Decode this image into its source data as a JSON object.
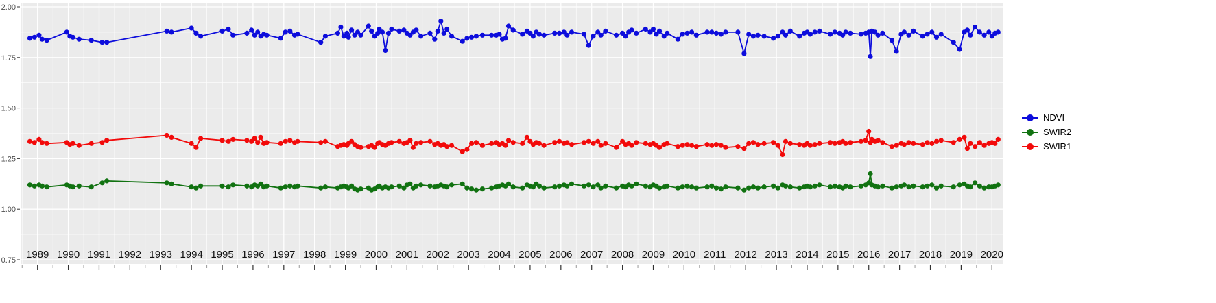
{
  "chart_data": {
    "type": "line",
    "title": "",
    "xlabel": "",
    "ylabel": "",
    "xlim": [
      1988.45,
      2020.35
    ],
    "ylim": [
      0.75,
      2.0
    ],
    "x_ticks": [
      1989,
      1990,
      1991,
      1992,
      1993,
      1994,
      1995,
      1996,
      1997,
      1998,
      1999,
      2000,
      2001,
      2002,
      2003,
      2004,
      2005,
      2006,
      2007,
      2008,
      2009,
      2010,
      2011,
      2012,
      2013,
      2014,
      2015,
      2016,
      2017,
      2018,
      2019,
      2020
    ],
    "y_ticks": [
      0.75,
      1.0,
      1.25,
      1.5,
      1.75,
      2.0
    ],
    "y_tick_labels": [
      "0.75",
      "1.00",
      "1.25",
      "1.50",
      "1.75",
      "2.00"
    ],
    "grid": true,
    "legend_position": "right",
    "colors": {
      "panel_bg": "#EBEBEB",
      "grid": "#FFFFFF",
      "axis_text": "#4D4D4D",
      "x_axis_text": "#111111",
      "ndvi": "#0D0DDC",
      "swir2": "#117211",
      "swir1": "#F20A0A"
    },
    "x": [
      1988.75,
      1988.9,
      1989.05,
      1989.15,
      1989.3,
      1989.95,
      1990.05,
      1990.15,
      1990.35,
      1990.75,
      1991.1,
      1991.25,
      1993.2,
      1993.35,
      1994.0,
      1994.15,
      1994.3,
      1995.0,
      1995.2,
      1995.35,
      1995.8,
      1995.95,
      1996.05,
      1996.15,
      1996.25,
      1996.35,
      1996.45,
      1996.9,
      1997.05,
      1997.2,
      1997.35,
      1997.45,
      1998.2,
      1998.35,
      1998.75,
      1998.85,
      1998.95,
      1999.05,
      1999.1,
      1999.2,
      1999.3,
      1999.4,
      1999.5,
      1999.75,
      1999.85,
      1999.95,
      2000.05,
      2000.1,
      2000.2,
      2000.3,
      2000.4,
      2000.5,
      2000.75,
      2000.9,
      2001.0,
      2001.1,
      2001.2,
      2001.3,
      2001.45,
      2001.75,
      2001.9,
      2002.0,
      2002.1,
      2002.2,
      2002.3,
      2002.45,
      2002.8,
      2002.95,
      2003.1,
      2003.25,
      2003.45,
      2003.75,
      2003.9,
      2004.0,
      2004.1,
      2004.2,
      2004.3,
      2004.45,
      2004.75,
      2004.9,
      2005.0,
      2005.1,
      2005.2,
      2005.3,
      2005.45,
      2005.8,
      2005.95,
      2006.1,
      2006.2,
      2006.35,
      2006.75,
      2006.9,
      2007.05,
      2007.2,
      2007.3,
      2007.45,
      2007.8,
      2008.0,
      2008.1,
      2008.2,
      2008.3,
      2008.45,
      2008.75,
      2008.9,
      2009.0,
      2009.1,
      2009.2,
      2009.35,
      2009.45,
      2009.8,
      2009.95,
      2010.1,
      2010.25,
      2010.4,
      2010.75,
      2010.9,
      2011.05,
      2011.2,
      2011.35,
      2011.75,
      2011.95,
      2012.1,
      2012.25,
      2012.4,
      2012.6,
      2012.9,
      2013.05,
      2013.2,
      2013.3,
      2013.45,
      2013.75,
      2013.9,
      2014.0,
      2014.1,
      2014.25,
      2014.4,
      2014.75,
      2014.9,
      2015.05,
      2015.15,
      2015.25,
      2015.4,
      2015.75,
      2015.9,
      2016.0,
      2016.05,
      2016.1,
      2016.2,
      2016.3,
      2016.45,
      2016.75,
      2016.9,
      2017.05,
      2017.15,
      2017.3,
      2017.45,
      2017.75,
      2017.9,
      2018.05,
      2018.2,
      2018.35,
      2018.75,
      2018.95,
      2019.1,
      2019.2,
      2019.3,
      2019.45,
      2019.6,
      2019.75,
      2019.9,
      2020.0,
      2020.1,
      2020.2
    ],
    "series": [
      {
        "name": "NDVI",
        "color": "#0D0DDC",
        "values": [
          1.845,
          1.85,
          1.86,
          1.84,
          1.835,
          1.875,
          1.855,
          1.85,
          1.84,
          1.835,
          1.825,
          1.825,
          1.88,
          1.875,
          1.895,
          1.87,
          1.855,
          1.88,
          1.89,
          1.86,
          1.87,
          1.885,
          1.86,
          1.875,
          1.855,
          1.865,
          1.86,
          1.845,
          1.875,
          1.88,
          1.86,
          1.865,
          1.825,
          1.855,
          1.87,
          1.9,
          1.855,
          1.87,
          1.85,
          1.885,
          1.86,
          1.875,
          1.86,
          1.905,
          1.88,
          1.855,
          1.87,
          1.89,
          1.875,
          1.785,
          1.87,
          1.89,
          1.88,
          1.885,
          1.87,
          1.86,
          1.875,
          1.885,
          1.855,
          1.87,
          1.84,
          1.88,
          1.93,
          1.87,
          1.89,
          1.855,
          1.83,
          1.845,
          1.85,
          1.855,
          1.86,
          1.86,
          1.86,
          1.865,
          1.84,
          1.845,
          1.905,
          1.885,
          1.865,
          1.88,
          1.87,
          1.855,
          1.875,
          1.865,
          1.86,
          1.87,
          1.87,
          1.875,
          1.86,
          1.875,
          1.865,
          1.81,
          1.855,
          1.875,
          1.86,
          1.88,
          1.86,
          1.87,
          1.855,
          1.875,
          1.885,
          1.87,
          1.89,
          1.875,
          1.89,
          1.865,
          1.88,
          1.855,
          1.87,
          1.84,
          1.865,
          1.87,
          1.875,
          1.86,
          1.875,
          1.875,
          1.87,
          1.865,
          1.875,
          1.875,
          1.77,
          1.865,
          1.855,
          1.86,
          1.855,
          1.845,
          1.855,
          1.875,
          1.86,
          1.88,
          1.855,
          1.87,
          1.875,
          1.865,
          1.875,
          1.88,
          1.865,
          1.875,
          1.87,
          1.86,
          1.875,
          1.87,
          1.865,
          1.87,
          1.875,
          1.755,
          1.88,
          1.875,
          1.86,
          1.87,
          1.835,
          1.78,
          1.865,
          1.875,
          1.86,
          1.88,
          1.855,
          1.865,
          1.875,
          1.85,
          1.865,
          1.825,
          1.79,
          1.875,
          1.885,
          1.86,
          1.9,
          1.875,
          1.86,
          1.875,
          1.855,
          1.87,
          1.875
        ]
      },
      {
        "name": "SWIR2",
        "color": "#117211",
        "values": [
          1.12,
          1.115,
          1.12,
          1.115,
          1.11,
          1.12,
          1.115,
          1.11,
          1.115,
          1.11,
          1.13,
          1.14,
          1.13,
          1.125,
          1.11,
          1.105,
          1.115,
          1.115,
          1.11,
          1.12,
          1.115,
          1.11,
          1.12,
          1.115,
          1.125,
          1.11,
          1.115,
          1.105,
          1.11,
          1.115,
          1.11,
          1.115,
          1.105,
          1.11,
          1.105,
          1.11,
          1.115,
          1.11,
          1.105,
          1.115,
          1.1,
          1.095,
          1.1,
          1.105,
          1.095,
          1.1,
          1.11,
          1.115,
          1.105,
          1.11,
          1.105,
          1.11,
          1.115,
          1.105,
          1.12,
          1.125,
          1.105,
          1.115,
          1.12,
          1.115,
          1.11,
          1.115,
          1.12,
          1.115,
          1.11,
          1.12,
          1.125,
          1.105,
          1.1,
          1.095,
          1.1,
          1.105,
          1.11,
          1.115,
          1.12,
          1.115,
          1.125,
          1.11,
          1.105,
          1.12,
          1.115,
          1.11,
          1.125,
          1.115,
          1.105,
          1.11,
          1.115,
          1.12,
          1.115,
          1.125,
          1.115,
          1.12,
          1.11,
          1.12,
          1.105,
          1.115,
          1.105,
          1.115,
          1.11,
          1.12,
          1.115,
          1.125,
          1.115,
          1.11,
          1.12,
          1.115,
          1.105,
          1.11,
          1.115,
          1.105,
          1.11,
          1.115,
          1.11,
          1.105,
          1.11,
          1.115,
          1.105,
          1.1,
          1.11,
          1.105,
          1.095,
          1.105,
          1.11,
          1.105,
          1.11,
          1.115,
          1.105,
          1.12,
          1.115,
          1.11,
          1.105,
          1.11,
          1.115,
          1.11,
          1.115,
          1.12,
          1.11,
          1.115,
          1.11,
          1.105,
          1.115,
          1.11,
          1.115,
          1.12,
          1.13,
          1.175,
          1.12,
          1.115,
          1.11,
          1.115,
          1.105,
          1.11,
          1.115,
          1.12,
          1.11,
          1.115,
          1.11,
          1.115,
          1.12,
          1.105,
          1.115,
          1.11,
          1.12,
          1.125,
          1.115,
          1.11,
          1.13,
          1.115,
          1.105,
          1.11,
          1.11,
          1.115,
          1.12
        ]
      },
      {
        "name": "SWIR1",
        "color": "#F20A0A",
        "values": [
          1.335,
          1.33,
          1.345,
          1.33,
          1.325,
          1.33,
          1.32,
          1.325,
          1.315,
          1.325,
          1.33,
          1.34,
          1.365,
          1.355,
          1.325,
          1.305,
          1.35,
          1.34,
          1.335,
          1.345,
          1.34,
          1.335,
          1.35,
          1.33,
          1.355,
          1.325,
          1.33,
          1.325,
          1.335,
          1.34,
          1.33,
          1.335,
          1.33,
          1.335,
          1.31,
          1.315,
          1.32,
          1.315,
          1.325,
          1.335,
          1.32,
          1.31,
          1.305,
          1.31,
          1.315,
          1.305,
          1.325,
          1.33,
          1.32,
          1.315,
          1.325,
          1.33,
          1.335,
          1.325,
          1.33,
          1.34,
          1.305,
          1.325,
          1.33,
          1.335,
          1.32,
          1.325,
          1.315,
          1.32,
          1.31,
          1.315,
          1.285,
          1.295,
          1.325,
          1.33,
          1.315,
          1.325,
          1.33,
          1.32,
          1.325,
          1.315,
          1.34,
          1.33,
          1.325,
          1.355,
          1.335,
          1.32,
          1.33,
          1.325,
          1.315,
          1.33,
          1.335,
          1.325,
          1.33,
          1.32,
          1.33,
          1.335,
          1.325,
          1.335,
          1.315,
          1.325,
          1.305,
          1.335,
          1.32,
          1.325,
          1.315,
          1.33,
          1.325,
          1.32,
          1.325,
          1.315,
          1.305,
          1.32,
          1.325,
          1.31,
          1.315,
          1.32,
          1.315,
          1.31,
          1.32,
          1.315,
          1.32,
          1.315,
          1.305,
          1.31,
          1.3,
          1.325,
          1.33,
          1.32,
          1.325,
          1.33,
          1.315,
          1.27,
          1.335,
          1.325,
          1.32,
          1.315,
          1.325,
          1.315,
          1.32,
          1.325,
          1.33,
          1.325,
          1.33,
          1.335,
          1.325,
          1.33,
          1.335,
          1.34,
          1.385,
          1.33,
          1.345,
          1.335,
          1.34,
          1.33,
          1.31,
          1.315,
          1.325,
          1.32,
          1.33,
          1.325,
          1.32,
          1.33,
          1.325,
          1.335,
          1.34,
          1.33,
          1.345,
          1.355,
          1.3,
          1.325,
          1.31,
          1.33,
          1.315,
          1.325,
          1.33,
          1.325,
          1.345
        ]
      }
    ],
    "legend": [
      "NDVI",
      "SWIR2",
      "SWIR1"
    ]
  }
}
